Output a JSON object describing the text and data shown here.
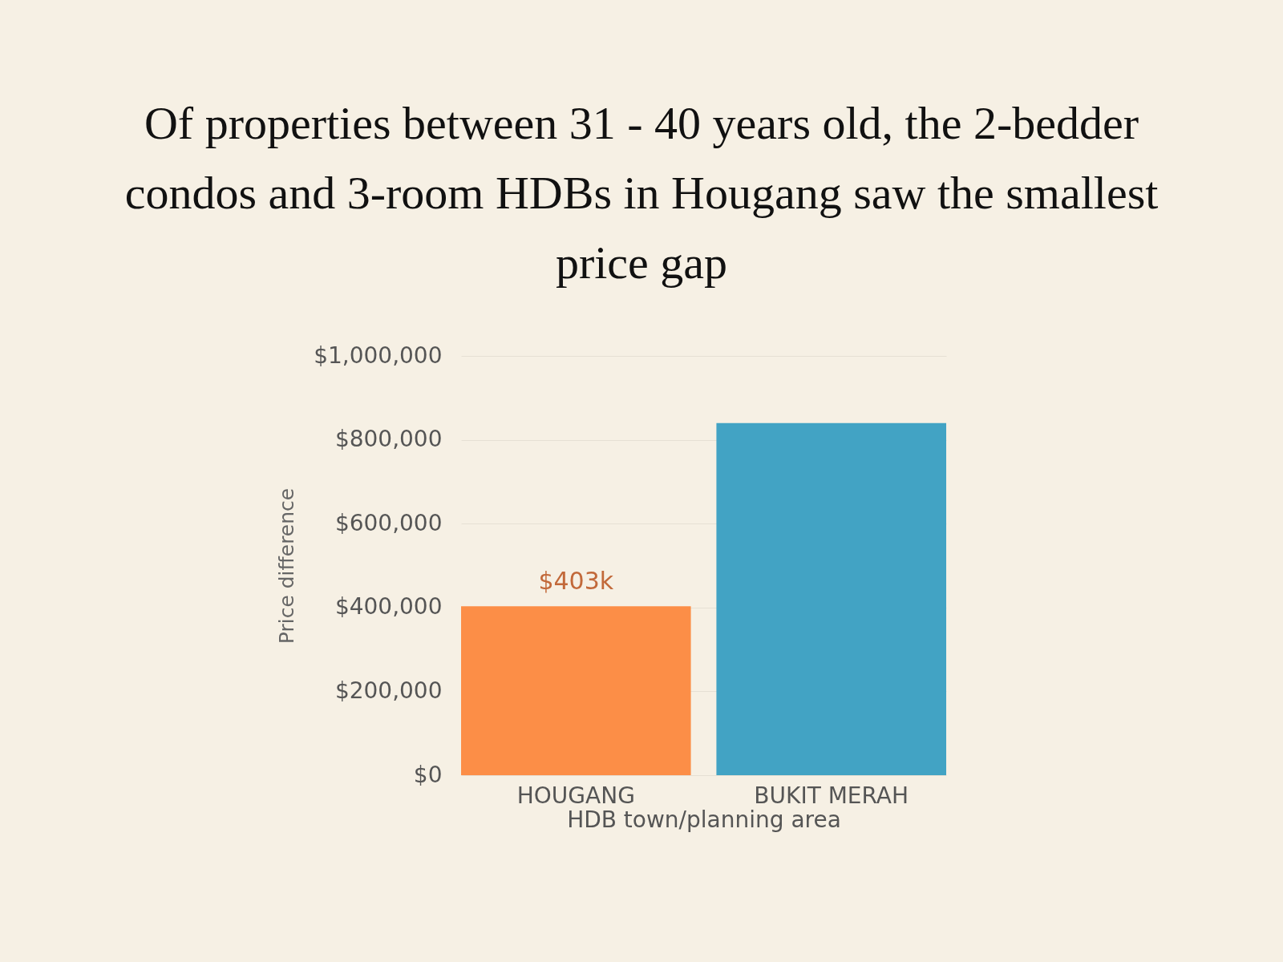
{
  "chart_data": {
    "type": "bar",
    "title": "Of properties between 31 - 40 years old, the 2-bedder condos and 3-room HDBs in Hougang saw the smallest price gap",
    "xlabel": "HDB town/planning area",
    "ylabel": "Price difference",
    "categories": [
      "HOUGANG",
      "BUKIT MERAH"
    ],
    "values": [
      403000,
      840000
    ],
    "colors": [
      "#fc8e47",
      "#42a3c4"
    ],
    "value_labels": [
      "$403k",
      null
    ],
    "ylim": [
      0,
      1000000
    ],
    "yticks": [
      {
        "value": 0,
        "label": "$0"
      },
      {
        "value": 200000,
        "label": "$200,000"
      },
      {
        "value": 400000,
        "label": "$400,000"
      },
      {
        "value": 600000,
        "label": "$600,000"
      },
      {
        "value": 800000,
        "label": "$800,000"
      },
      {
        "value": 1000000,
        "label": "$1,000,000"
      }
    ],
    "grid": "y",
    "legend": false
  }
}
